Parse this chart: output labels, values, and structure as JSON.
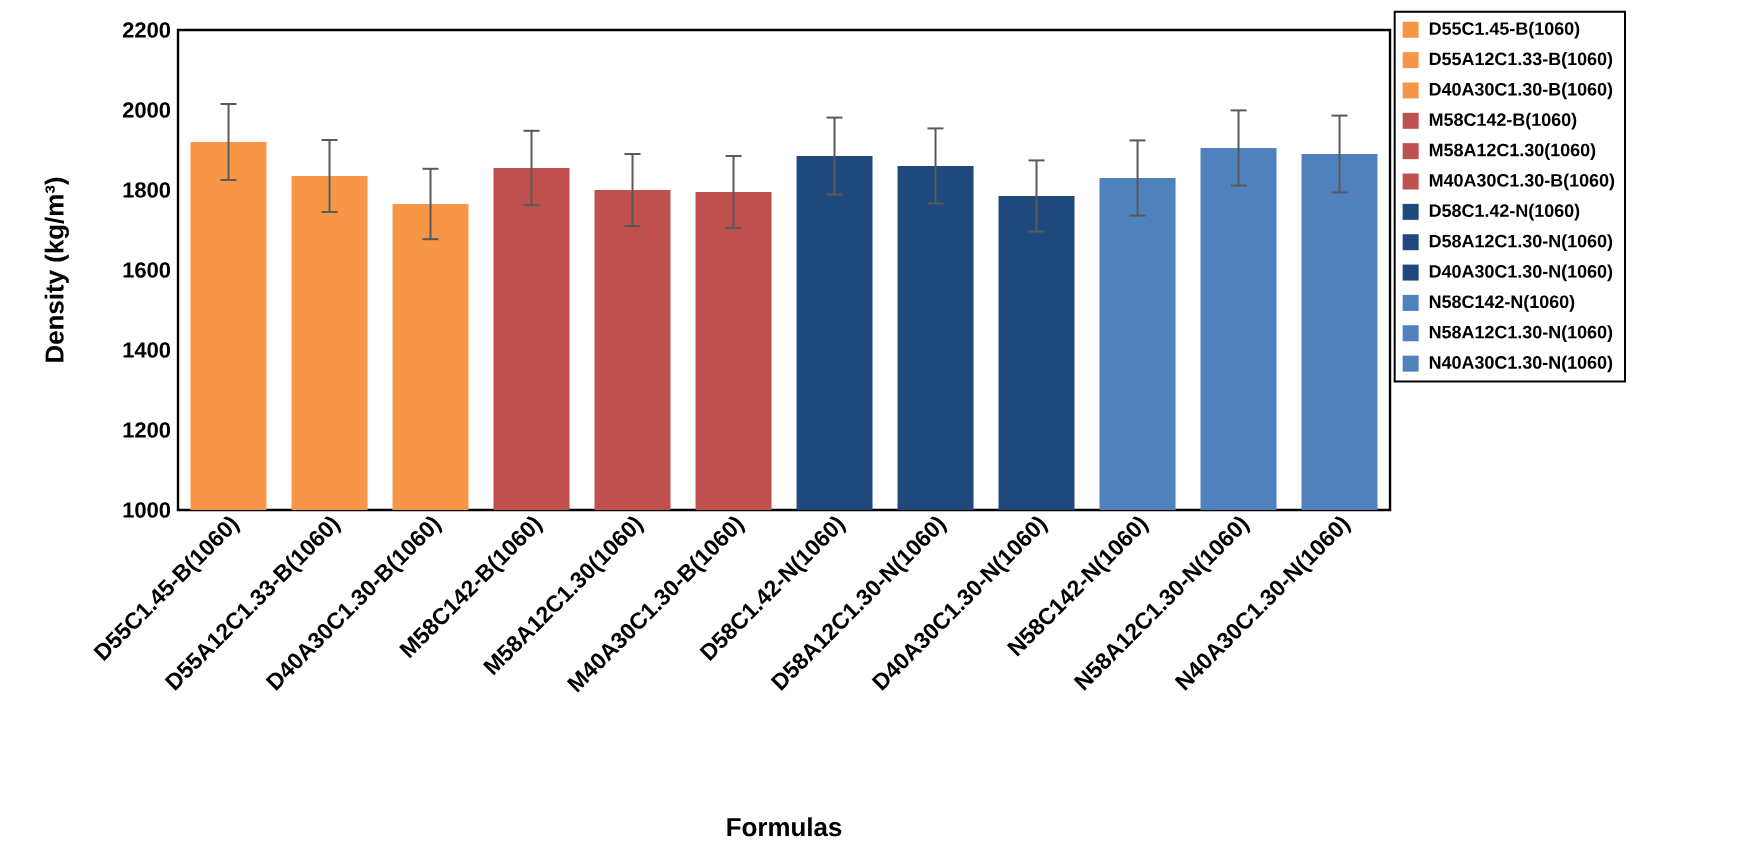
{
  "chart_data": {
    "type": "bar",
    "xlabel": "Formulas",
    "ylabel": "Density (kg/m³)",
    "categories": [
      "D55C1.45-B(1060)",
      "D55A12C1.33-B(1060)",
      "D40A30C1.30-B(1060)",
      "M58C142-B(1060)",
      "M58A12C1.30(1060)",
      "M40A30C1.30-B(1060)",
      "D58C1.42-N(1060)",
      "D58A12C1.30-N(1060)",
      "D40A30C1.30-N(1060)",
      "N58C142-N(1060)",
      "N58A12C1.30-N(1060)",
      "N40A30C1.30-N(1060)"
    ],
    "series": [
      {
        "name": "D55C1.45-B(1060)",
        "color": "#f79646",
        "values": [
          1920,
          null,
          null,
          null,
          null,
          null,
          null,
          null,
          null,
          null,
          null,
          null
        ],
        "errors": [
          95,
          null,
          null,
          null,
          null,
          null,
          null,
          null,
          null,
          null,
          null,
          null
        ]
      },
      {
        "name": "D55A12C1.33-B(1060)",
        "color": "#f79646",
        "values": [
          null,
          1835,
          null,
          null,
          null,
          null,
          null,
          null,
          null,
          null,
          null,
          null
        ],
        "errors": [
          null,
          90,
          null,
          null,
          null,
          null,
          null,
          null,
          null,
          null,
          null,
          null
        ]
      },
      {
        "name": "D40A30C1.30-B(1060)",
        "color": "#f79646",
        "values": [
          null,
          null,
          1765,
          null,
          null,
          null,
          null,
          null,
          null,
          null,
          null,
          null
        ],
        "errors": [
          null,
          null,
          88,
          null,
          null,
          null,
          null,
          null,
          null,
          null,
          null,
          null
        ]
      },
      {
        "name": "M58C142-B(1060)",
        "color": "#c0504d",
        "values": [
          null,
          null,
          null,
          1855,
          null,
          null,
          null,
          null,
          null,
          null,
          null,
          null
        ],
        "errors": [
          null,
          null,
          null,
          93,
          null,
          null,
          null,
          null,
          null,
          null,
          null,
          null
        ]
      },
      {
        "name": "M58A12C1.30(1060)",
        "color": "#c0504d",
        "values": [
          null,
          null,
          null,
          null,
          1800,
          null,
          null,
          null,
          null,
          null,
          null,
          null
        ],
        "errors": [
          null,
          null,
          null,
          null,
          90,
          null,
          null,
          null,
          null,
          null,
          null,
          null
        ]
      },
      {
        "name": "M40A30C1.30-B(1060)",
        "color": "#c0504d",
        "values": [
          null,
          null,
          null,
          null,
          null,
          1795,
          null,
          null,
          null,
          null,
          null,
          null
        ],
        "errors": [
          null,
          null,
          null,
          null,
          null,
          90,
          null,
          null,
          null,
          null,
          null,
          null
        ]
      },
      {
        "name": "D58C1.42-N(1060)",
        "color": "#1f497d",
        "values": [
          null,
          null,
          null,
          null,
          null,
          null,
          1885,
          null,
          null,
          null,
          null,
          null
        ],
        "errors": [
          null,
          null,
          null,
          null,
          null,
          null,
          96,
          null,
          null,
          null,
          null,
          null
        ]
      },
      {
        "name": "D58A12C1.30-N(1060)",
        "color": "#1f497d",
        "values": [
          null,
          null,
          null,
          null,
          null,
          null,
          null,
          1860,
          null,
          null,
          null,
          null
        ],
        "errors": [
          null,
          null,
          null,
          null,
          null,
          null,
          null,
          94,
          null,
          null,
          null,
          null
        ]
      },
      {
        "name": "D40A30C1.30-N(1060)",
        "color": "#1f497d",
        "values": [
          null,
          null,
          null,
          null,
          null,
          null,
          null,
          null,
          1785,
          null,
          null,
          null
        ],
        "errors": [
          null,
          null,
          null,
          null,
          null,
          null,
          null,
          null,
          89,
          null,
          null,
          null
        ]
      },
      {
        "name": "N58C142-N(1060)",
        "color": "#4f81bd",
        "values": [
          null,
          null,
          null,
          null,
          null,
          null,
          null,
          null,
          null,
          1830,
          null,
          null
        ],
        "errors": [
          null,
          null,
          null,
          null,
          null,
          null,
          null,
          null,
          null,
          94,
          null,
          null
        ]
      },
      {
        "name": "N58A12C1.30-N(1060)",
        "color": "#4f81bd",
        "values": [
          null,
          null,
          null,
          null,
          null,
          null,
          null,
          null,
          null,
          null,
          1905,
          null
        ],
        "errors": [
          null,
          null,
          null,
          null,
          null,
          null,
          null,
          null,
          null,
          null,
          94,
          null
        ]
      },
      {
        "name": "N40A30C1.30-N(1060)",
        "color": "#4f81bd",
        "values": [
          null,
          null,
          null,
          null,
          null,
          null,
          null,
          null,
          null,
          null,
          null,
          1890
        ],
        "errors": [
          null,
          null,
          null,
          null,
          null,
          null,
          null,
          null,
          null,
          null,
          null,
          96
        ]
      }
    ],
    "ylim": [
      1000,
      2200
    ],
    "yticks": [
      1000,
      1200,
      1400,
      1600,
      1800,
      2000,
      2200
    ],
    "legend": "right"
  }
}
